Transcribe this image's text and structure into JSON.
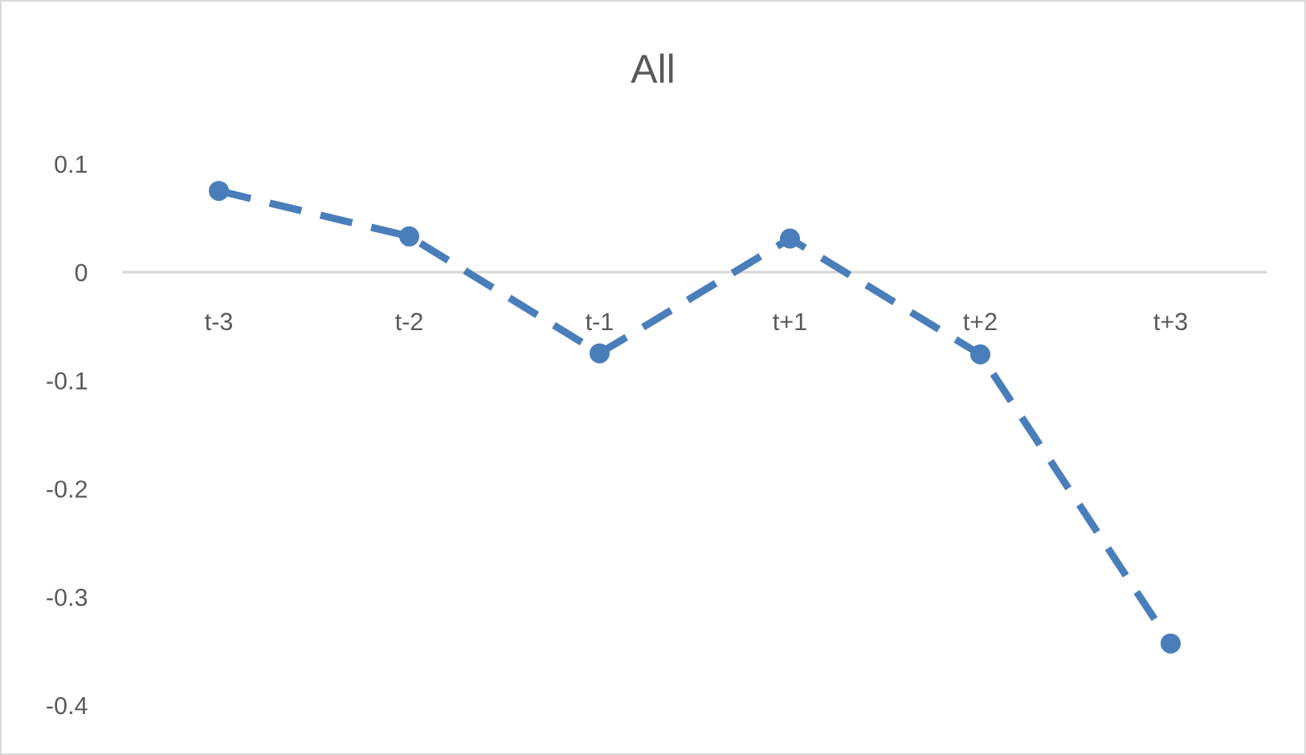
{
  "chart_data": {
    "type": "line",
    "title": "All",
    "categories": [
      "t-3",
      "t-2",
      "t-1",
      "t+1",
      "t+2",
      "t+3"
    ],
    "series": [
      {
        "color": "#4a7ebb",
        "values": [
          0.075,
          0.033,
          -0.075,
          0.031,
          -0.076,
          -0.343
        ]
      }
    ],
    "ylim": [
      -0.4,
      0.1
    ],
    "yticks": [
      -0.4,
      -0.3,
      -0.2,
      -0.1,
      0,
      0.1
    ],
    "grid": false,
    "marker": "circle",
    "line_style": "dashed"
  }
}
